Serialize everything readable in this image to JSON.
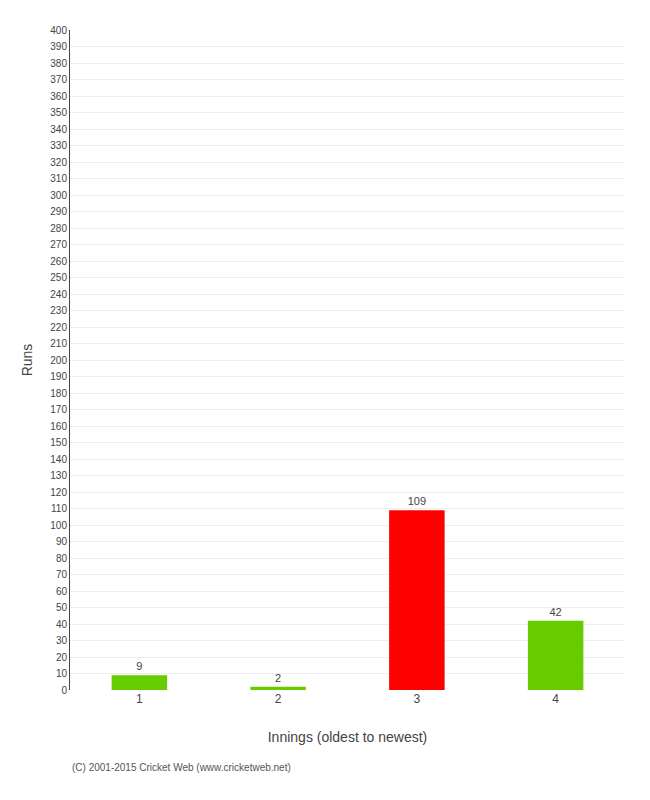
{
  "chart_data": {
    "type": "bar",
    "categories": [
      "1",
      "2",
      "3",
      "4"
    ],
    "values": [
      9,
      2,
      109,
      42
    ],
    "colors": [
      "#66cc00",
      "#66cc00",
      "#ff0000",
      "#66cc00"
    ],
    "xlabel": "Innings (oldest to newest)",
    "ylabel": "Runs",
    "ylim": [
      0,
      400
    ],
    "yticks": [
      0,
      10,
      20,
      30,
      40,
      50,
      60,
      70,
      80,
      90,
      100,
      110,
      120,
      130,
      140,
      150,
      160,
      170,
      180,
      190,
      200,
      210,
      220,
      230,
      240,
      250,
      260,
      270,
      280,
      290,
      300,
      310,
      320,
      330,
      340,
      350,
      360,
      370,
      380,
      390,
      400
    ],
    "grid": true,
    "data_labels": true,
    "annotations": [
      "(C) 2001-2015 Cricket Web (www.cricketweb.net)"
    ]
  }
}
